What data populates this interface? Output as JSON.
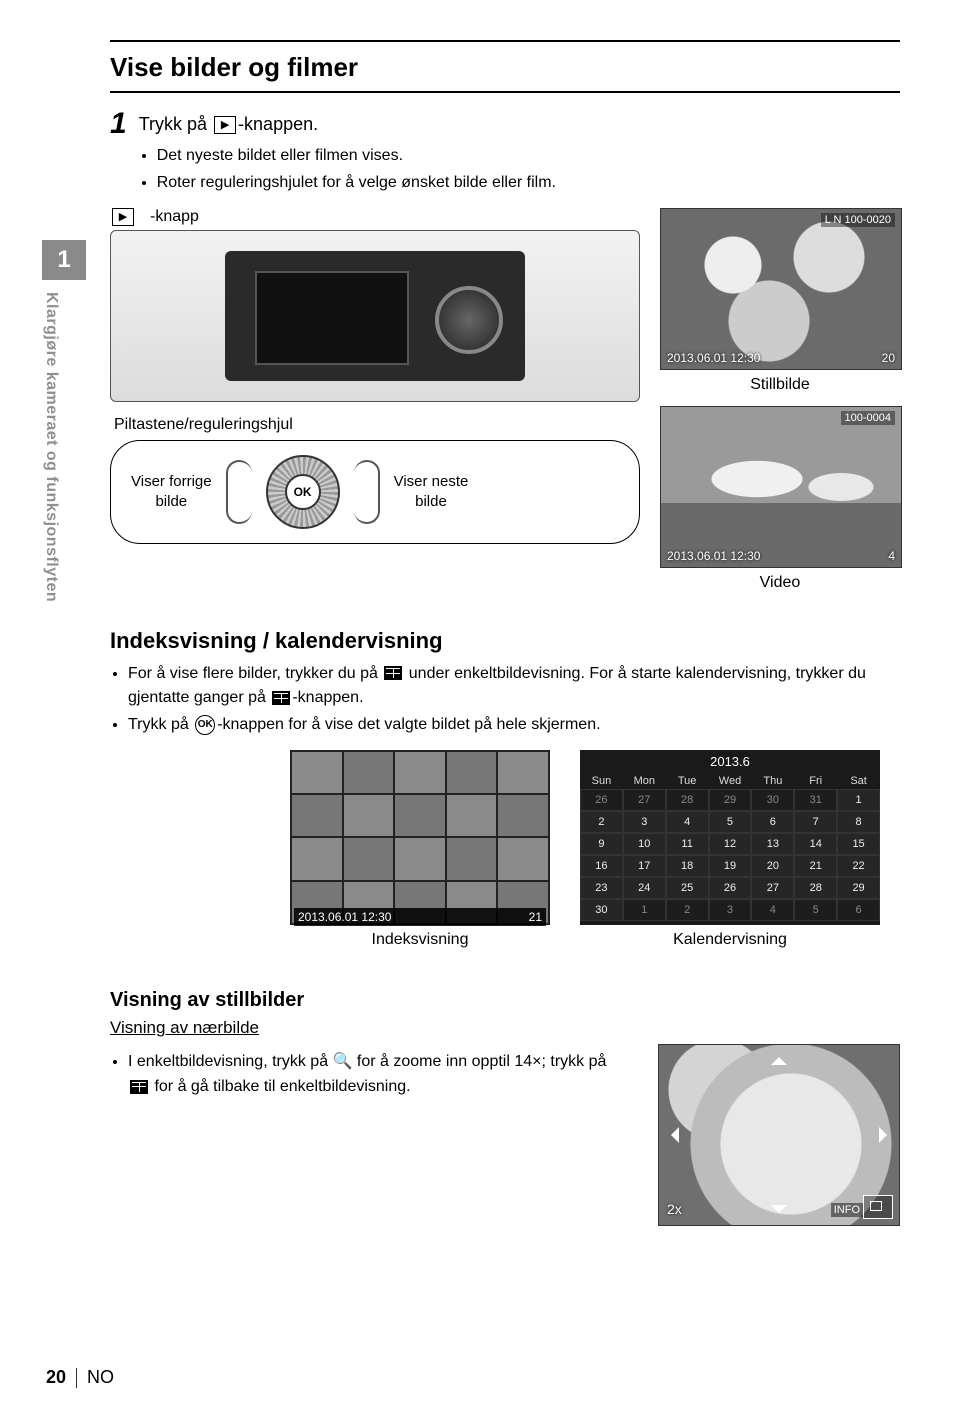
{
  "title": "Vise bilder og filmer",
  "step1_label": "1",
  "step1_text_a": "Trykk på ",
  "step1_text_b": "-knappen.",
  "step1_bullets": [
    "Det nyeste bildet eller filmen vises.",
    "Roter reguleringshjulet for å velge ønsket bilde eller film."
  ],
  "play_glyph": "▶",
  "tab_num": "1",
  "tab_text": "Klargjøre kameraet og funksjonsflyten",
  "camera_button_label": "-knapp",
  "pilt_label": "Piltastene/reguleringshjul",
  "prev_label_a": "Viser forrige",
  "prev_label_b": "bilde",
  "ok_label": "OK",
  "next_label_a": "Viser neste",
  "next_label_b": "bilde",
  "still_meta_date": "2013.06.01 12:30",
  "still_meta_top": "L N  100-0020",
  "still_meta_count": "20",
  "still_caption": "Stillbilde",
  "video_meta_date": "2013.06.01 12:30",
  "video_meta_top": "100-0004",
  "video_meta_count": "4",
  "video_caption": "Video",
  "sub_heading": "Indeksvisning / kalendervisning",
  "sub_bullet1_a": "For å vise flere bilder, trykker du på ",
  "sub_bullet1_b": " under enkeltbildevisning. For å starte kalendervisning, trykker du gjentatte ganger på ",
  "sub_bullet1_c": "-knappen.",
  "sub_bullet2_a": "Trykk på ",
  "sub_bullet2_b": "-knappen for å vise det valgte bildet på hele skjermen.",
  "ok_inline": "OK",
  "index_meta_date": "2013.06.01 12:30",
  "index_meta_count": "21",
  "index_caption": "Indeksvisning",
  "cal_title": "2013.6",
  "cal_days": [
    "Sun",
    "Mon",
    "Tue",
    "Wed",
    "Thu",
    "Fri",
    "Sat"
  ],
  "cal_rows": [
    {
      "vals": [
        "26",
        "27",
        "28",
        "29",
        "30",
        "31",
        "1"
      ],
      "dim": [
        0,
        1,
        2,
        3,
        4,
        5
      ]
    },
    {
      "vals": [
        "2",
        "3",
        "4",
        "5",
        "6",
        "7",
        "8"
      ],
      "dim": []
    },
    {
      "vals": [
        "9",
        "10",
        "11",
        "12",
        "13",
        "14",
        "15"
      ],
      "dim": []
    },
    {
      "vals": [
        "16",
        "17",
        "18",
        "19",
        "20",
        "21",
        "22"
      ],
      "dim": []
    },
    {
      "vals": [
        "23",
        "24",
        "25",
        "26",
        "27",
        "28",
        "29"
      ],
      "dim": []
    },
    {
      "vals": [
        "30",
        "1",
        "2",
        "3",
        "4",
        "5",
        "6"
      ],
      "dim": [
        1,
        2,
        3,
        4,
        5,
        6
      ]
    }
  ],
  "cal_caption": "Kalendervisning",
  "still_heading": "Visning av stillbilder",
  "closeup_heading": "Visning av nærbilde",
  "closeup_bullet_a": "I enkeltbildevisning, trykk på ",
  "closeup_bullet_b": " for å zoome inn opptil 14×; trykk på ",
  "closeup_bullet_c": " for å gå tilbake til enkeltbildevisning.",
  "mag_glyph": "🔍",
  "zoom_label": "2x",
  "info_label": "INFO",
  "page_num": "20",
  "lang": "NO"
}
